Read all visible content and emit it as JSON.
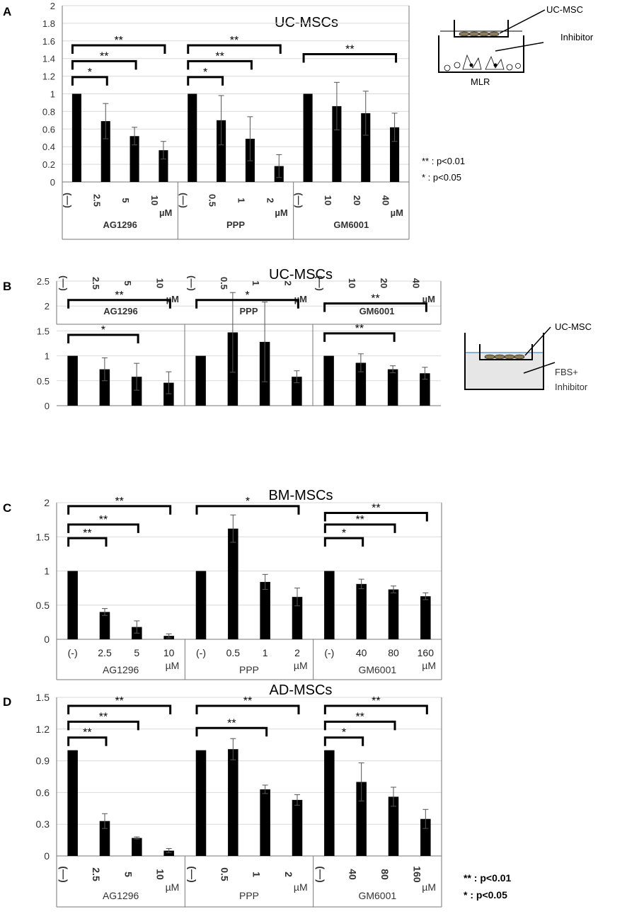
{
  "legend_a": {
    "double": "** : p<0.01",
    "single": "* : p<0.05"
  },
  "legend_d": {
    "double": "** : p<0.01",
    "single": "* : p<0.05"
  },
  "diagram_a": {
    "top": "UC-MSC",
    "middle": "Inhibitor",
    "bottom": "MLR"
  },
  "diagram_b": {
    "top": "UC-MSC",
    "middle": "FBS+",
    "bottom": "Inhibitor"
  },
  "chart_data": [
    {
      "panel": "A",
      "type": "bar",
      "title": "UC-MSCs",
      "ylim": [
        0,
        2
      ],
      "yticks": [
        "0",
        "0.2",
        "0.4",
        "0.6",
        "0.8",
        "1",
        "1.2",
        "1.4",
        "1.6",
        "1.8",
        "2"
      ],
      "categories": [
        "(—)",
        "2.5",
        "5",
        "10",
        "(—)",
        "0.5",
        "1",
        "2",
        "(—)",
        "10",
        "20",
        "40"
      ],
      "groups": [
        "AG1296",
        "PPP",
        "GM6001"
      ],
      "unit": "µM",
      "values": [
        1,
        0.69,
        0.52,
        0.36,
        1,
        0.7,
        0.49,
        0.18,
        1,
        0.86,
        0.78,
        0.62
      ],
      "errors": [
        0,
        0.2,
        0.1,
        0.1,
        0,
        0.28,
        0.25,
        0.13,
        0,
        0.27,
        0.25,
        0.16
      ],
      "significance": [
        {
          "from": 0,
          "to": 1,
          "label": "*",
          "level": 1.19
        },
        {
          "from": 0,
          "to": 2,
          "label": "**",
          "level": 1.37
        },
        {
          "from": 0,
          "to": 3,
          "label": "**",
          "level": 1.55
        },
        {
          "from": 4,
          "to": 5,
          "label": "*",
          "level": 1.19
        },
        {
          "from": 4,
          "to": 6,
          "label": "**",
          "level": 1.37
        },
        {
          "from": 4,
          "to": 7,
          "label": "**",
          "level": 1.55
        },
        {
          "from": 8,
          "to": 11,
          "label": "**",
          "level": 1.45
        }
      ]
    },
    {
      "panel": "B",
      "type": "bar",
      "title": "UC-MSCs",
      "ylim": [
        0,
        2.5
      ],
      "yticks": [
        "0",
        "0.5",
        "1",
        "1.5",
        "2",
        "2.5"
      ],
      "categories": [
        "(—)",
        "2.5",
        "5",
        "10",
        "(—)",
        "0.5",
        "1",
        "2",
        "(—)",
        "10",
        "20",
        "40"
      ],
      "groups": [
        "AG1296",
        "PPP",
        "GM6001"
      ],
      "unit": "µM",
      "values": [
        1,
        0.73,
        0.58,
        0.46,
        1,
        1.47,
        1.28,
        0.58,
        1,
        0.86,
        0.73,
        0.65
      ],
      "errors": [
        0,
        0.23,
        0.27,
        0.22,
        0,
        0.8,
        0.8,
        0.12,
        0,
        0.18,
        0.07,
        0.12
      ],
      "significance": [
        {
          "from": 0,
          "to": 2,
          "label": "*",
          "level": 1.42
        },
        {
          "from": 0,
          "to": 3,
          "label": "**",
          "level": 2.12
        },
        {
          "from": 4,
          "to": 7,
          "label": "*",
          "level": 2.12
        },
        {
          "from": 8,
          "to": 10,
          "label": "**",
          "level": 1.45
        },
        {
          "from": 8,
          "to": 11,
          "label": "**",
          "level": 2.05
        }
      ]
    },
    {
      "panel": "C",
      "type": "bar",
      "title": "BM-MSCs",
      "ylim": [
        0,
        2
      ],
      "yticks": [
        "0",
        "0.5",
        "1",
        "1.5",
        "2"
      ],
      "categories": [
        "(-)",
        "2.5",
        "5",
        "10",
        "(-)",
        "0.5",
        "1",
        "2",
        "(-)",
        "40",
        "80",
        "160"
      ],
      "groups": [
        "AG1296",
        "PPP",
        "GM6001"
      ],
      "unit": "µM",
      "values": [
        1,
        0.4,
        0.18,
        0.05,
        1,
        1.62,
        0.84,
        0.62,
        1,
        0.81,
        0.73,
        0.63
      ],
      "errors": [
        0,
        0.05,
        0.09,
        0.03,
        0,
        0.2,
        0.11,
        0.13,
        0,
        0.07,
        0.05,
        0.05
      ],
      "significance": [
        {
          "from": 0,
          "to": 1,
          "label": "**",
          "level": 1.48
        },
        {
          "from": 0,
          "to": 2,
          "label": "**",
          "level": 1.68
        },
        {
          "from": 0,
          "to": 3,
          "label": "**",
          "level": 1.95
        },
        {
          "from": 4,
          "to": 7,
          "label": "*",
          "level": 1.95
        },
        {
          "from": 8,
          "to": 9,
          "label": "*",
          "level": 1.48
        },
        {
          "from": 8,
          "to": 10,
          "label": "**",
          "level": 1.68
        },
        {
          "from": 8,
          "to": 11,
          "label": "**",
          "level": 1.85
        }
      ]
    },
    {
      "panel": "D",
      "type": "bar",
      "title": "AD-MSCs",
      "ylim": [
        0,
        1.5
      ],
      "yticks": [
        "0",
        "0.3",
        "0.6",
        "0.9",
        "1.2",
        "1.5"
      ],
      "categories": [
        "(—)",
        "2.5",
        "5",
        "10",
        "(—)",
        "0.5",
        "1",
        "2",
        "(—)",
        "40",
        "80",
        "160"
      ],
      "groups": [
        "AG1296",
        "PPP",
        "GM6001"
      ],
      "unit": "µM",
      "values": [
        1,
        0.33,
        0.17,
        0.05,
        1,
        1.01,
        0.63,
        0.53,
        1,
        0.7,
        0.56,
        0.35
      ],
      "errors": [
        0,
        0.07,
        0.01,
        0.02,
        0,
        0.1,
        0.04,
        0.05,
        0,
        0.18,
        0.09,
        0.09
      ],
      "significance": [
        {
          "from": 0,
          "to": 1,
          "label": "**",
          "level": 1.12
        },
        {
          "from": 0,
          "to": 2,
          "label": "**",
          "level": 1.27
        },
        {
          "from": 0,
          "to": 3,
          "label": "**",
          "level": 1.42
        },
        {
          "from": 4,
          "to": 6,
          "label": "**",
          "level": 1.21
        },
        {
          "from": 4,
          "to": 7,
          "label": "**",
          "level": 1.42
        },
        {
          "from": 8,
          "to": 9,
          "label": "*",
          "level": 1.12
        },
        {
          "from": 8,
          "to": 10,
          "label": "**",
          "level": 1.27
        },
        {
          "from": 8,
          "to": 11,
          "label": "**",
          "level": 1.42
        }
      ]
    }
  ]
}
